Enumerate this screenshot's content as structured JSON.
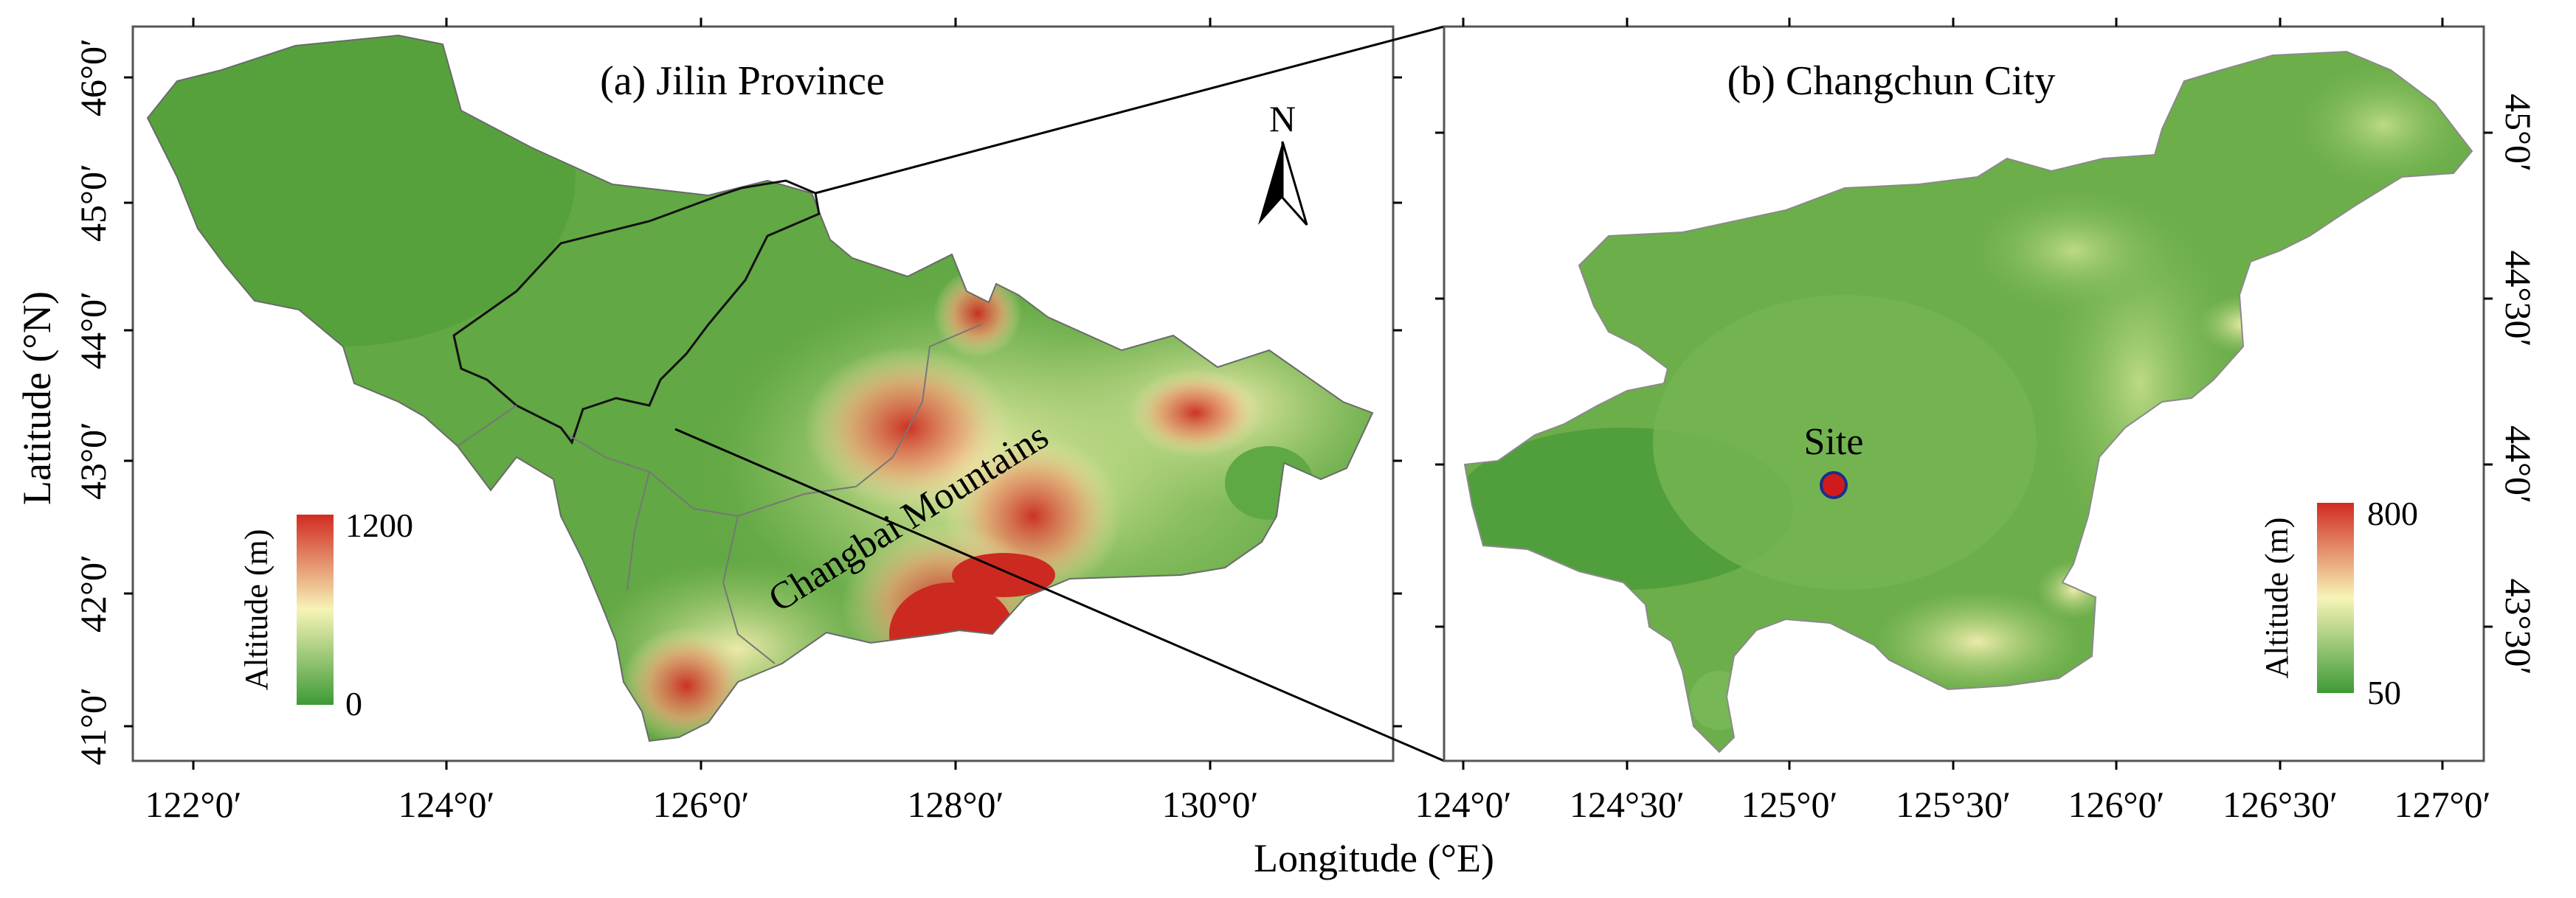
{
  "panel_a": {
    "title": "(a) Jilin Province",
    "x_ticks": [
      "122°0′",
      "124°0′",
      "126°0′",
      "128°0′",
      "130°0′"
    ],
    "y_ticks": [
      "41°0′",
      "42°0′",
      "43°0′",
      "44°0′",
      "45°0′",
      "46°0′"
    ],
    "y_axis_label": "Latitude (°N)",
    "legend": {
      "title": "Altitude (m)",
      "max": "1200",
      "min": "0"
    },
    "north_arrow": "N",
    "annotation": "Changbai Mountains"
  },
  "panel_b": {
    "title": "(b) Changchun City",
    "x_ticks": [
      "124°0′",
      "124°30′",
      "125°0′",
      "125°30′",
      "126°0′",
      "126°30′",
      "127°0′"
    ],
    "y_ticks": [
      "45°0′",
      "44°30′",
      "44°0′",
      "43°30′"
    ],
    "legend": {
      "title": "Altitude (m)",
      "max": "800",
      "min": "50"
    },
    "site_label": "Site"
  },
  "x_axis_label": "Longitude (°E)",
  "colors": {
    "low": "#3d9a35",
    "mid": "#f7f4b8",
    "high": "#d12b22",
    "boundary": "#111111",
    "site_fill": "#d11b1b",
    "site_stroke": "#1b2f8c"
  },
  "icons": {
    "north_arrow": "north-arrow-icon",
    "site": "site-marker-icon"
  }
}
